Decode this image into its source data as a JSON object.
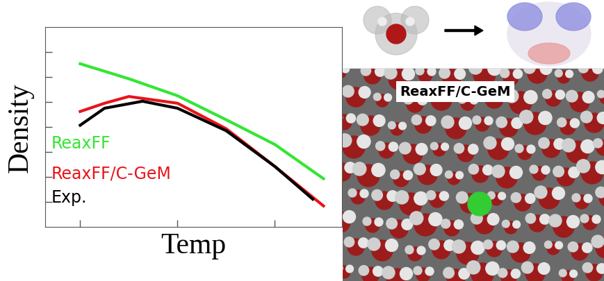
{
  "chart_data": {
    "type": "line",
    "x_label": "Temp",
    "y_label": "Density",
    "xlim": [
      0.64,
      3.69
    ],
    "xticks": [
      1,
      2,
      3
    ],
    "ylim": [
      0,
      8
    ],
    "yticks": [
      1,
      2,
      3,
      4,
      5,
      6,
      7
    ],
    "tick_labels": false,
    "series": [
      {
        "name": "ReaxFF",
        "color": "#33e633",
        "x": [
          1,
          1.5,
          2,
          2.5,
          3,
          3.5
        ],
        "values": [
          6.53,
          5.93,
          5.25,
          4.29,
          3.3,
          1.93
        ]
      },
      {
        "name": "ReaxFF/C-GeM",
        "color": "#e8141a",
        "x": [
          1,
          1.25,
          1.5,
          2,
          2.5,
          3,
          3.5
        ],
        "values": [
          4.62,
          4.95,
          5.22,
          4.95,
          3.93,
          2.42,
          0.84
        ]
      },
      {
        "name": "Exp.",
        "color": "#000000",
        "x": [
          1,
          1.25,
          1.64,
          2,
          2.5,
          3,
          3.39
        ],
        "values": [
          4.07,
          4.75,
          5.03,
          4.75,
          3.85,
          2.42,
          1.11
        ]
      }
    ]
  },
  "illustration": {
    "label": "ReaxFF/C-GeM"
  }
}
